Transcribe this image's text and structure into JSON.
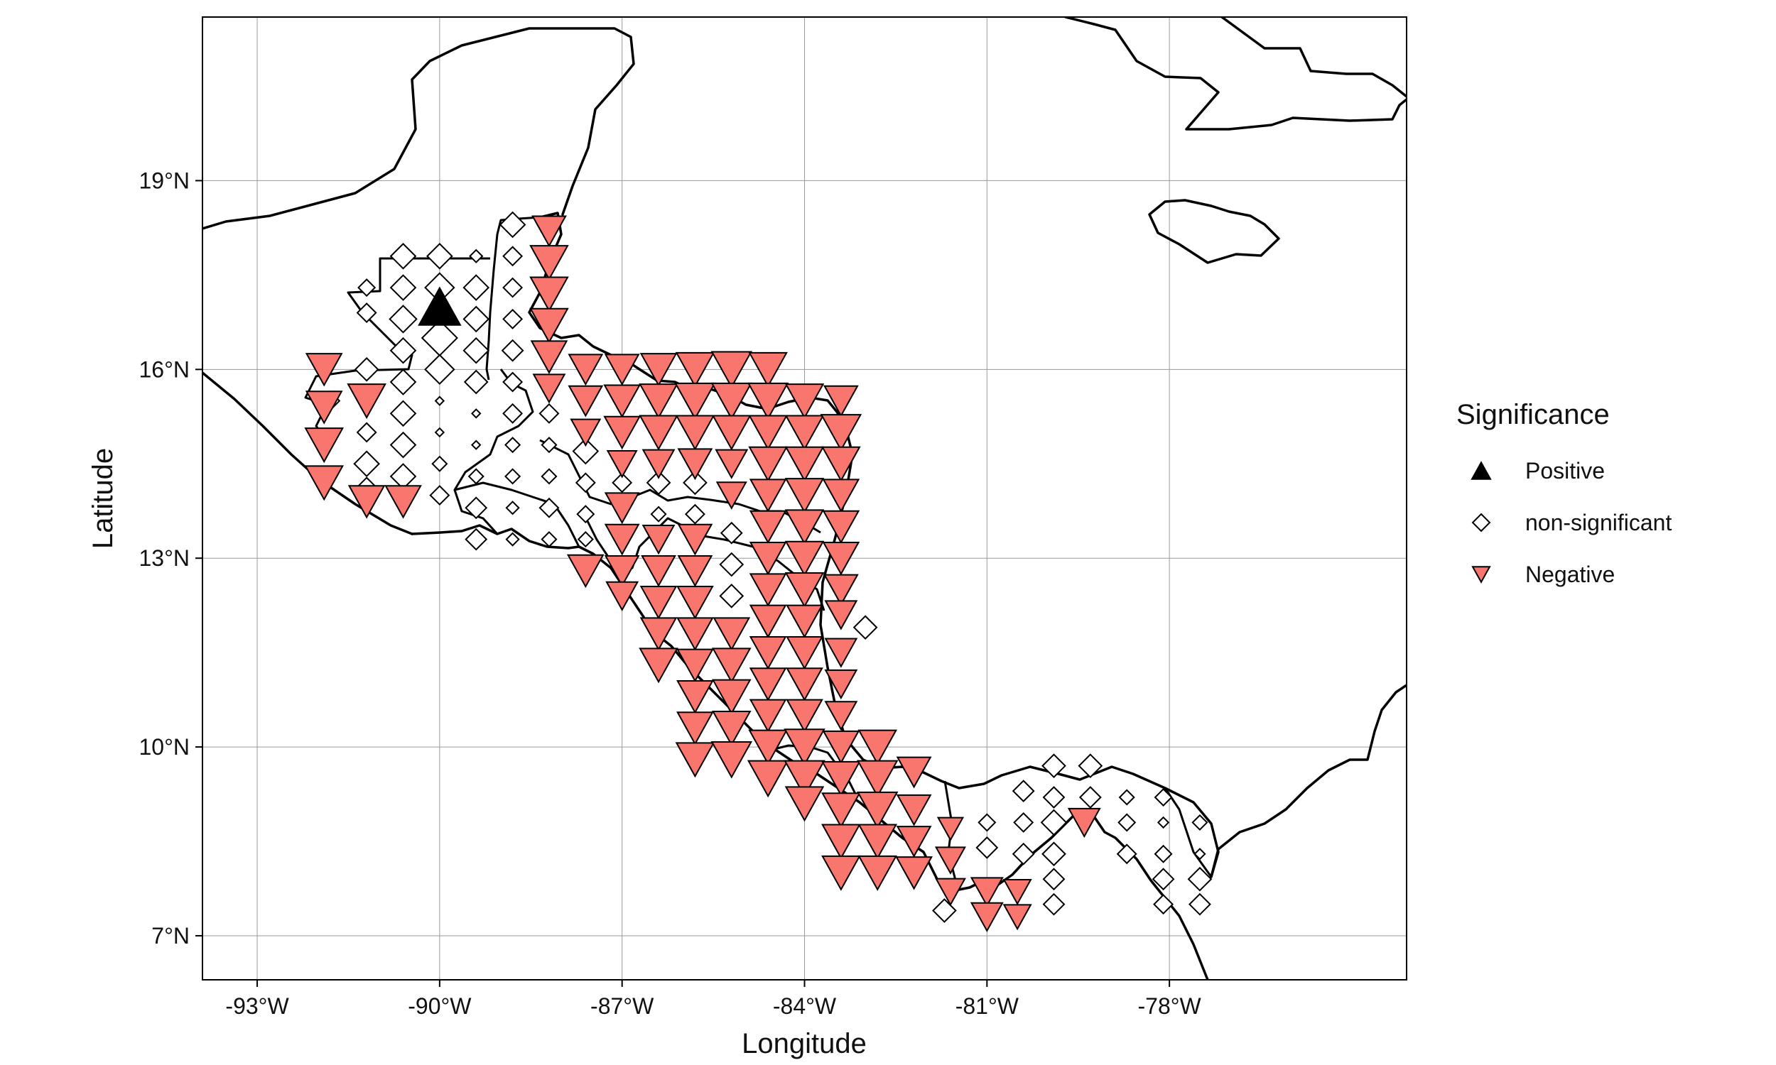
{
  "colors": {
    "negative": "#F8766D",
    "positive": "#000000",
    "nonsig_fill": "#ffffff",
    "stroke": "#000000",
    "grid": "#9a9a9a"
  },
  "chart_data": {
    "type": "scatter",
    "xlabel": "Longitude",
    "ylabel": "Latitude",
    "xlim": [
      -93.9,
      -74.1
    ],
    "ylim": [
      6.3,
      21.6
    ],
    "grid": true,
    "legend_position": "right",
    "x_ticks": [
      -93,
      -90,
      -87,
      -84,
      -81,
      -78
    ],
    "x_tick_labels": [
      "-93°W",
      "-90°W",
      "-87°W",
      "-84°W",
      "-81°W",
      "-78°W"
    ],
    "y_ticks": [
      7,
      10,
      13,
      16,
      19
    ],
    "y_tick_labels": [
      "7°N",
      "10°N",
      "13°N",
      "16°N",
      "19°N"
    ],
    "legend": {
      "title": "Significance",
      "entries": [
        {
          "key": "positive",
          "label": "Positive",
          "shape": "triangle-up"
        },
        {
          "key": "nonsig",
          "label": "non-significant",
          "shape": "diamond"
        },
        {
          "key": "negative",
          "label": "Negative",
          "shape": "triangle-down"
        }
      ]
    },
    "points": {
      "positive": [
        [
          -90.0,
          17.0,
          1.0
        ]
      ],
      "negative": [
        [
          -88.2,
          18.2,
          0.8
        ],
        [
          -88.2,
          17.7,
          0.9
        ],
        [
          -88.2,
          17.2,
          0.9
        ],
        [
          -88.2,
          16.7,
          0.9
        ],
        [
          -88.2,
          16.2,
          0.85
        ],
        [
          -88.2,
          15.7,
          0.75
        ],
        [
          -91.9,
          16.0,
          0.85
        ],
        [
          -91.9,
          15.4,
          0.85
        ],
        [
          -91.9,
          14.8,
          0.9
        ],
        [
          -91.9,
          14.2,
          0.9
        ],
        [
          -91.2,
          15.5,
          0.9
        ],
        [
          -91.2,
          13.9,
          0.85
        ],
        [
          -90.6,
          13.9,
          0.85
        ],
        [
          -87.6,
          16.0,
          0.8
        ],
        [
          -87.6,
          15.5,
          0.8
        ],
        [
          -87.6,
          15.0,
          0.7
        ],
        [
          -87.0,
          16.0,
          0.8
        ],
        [
          -87.0,
          15.5,
          0.85
        ],
        [
          -87.0,
          15.0,
          0.85
        ],
        [
          -87.0,
          14.5,
          0.7
        ],
        [
          -87.0,
          13.8,
          0.8
        ],
        [
          -87.0,
          13.3,
          0.8
        ],
        [
          -87.0,
          12.8,
          0.8
        ],
        [
          -87.0,
          12.4,
          0.75
        ],
        [
          -87.6,
          12.8,
          0.85
        ],
        [
          -86.4,
          16.0,
          0.85
        ],
        [
          -86.4,
          15.5,
          0.9
        ],
        [
          -86.4,
          15.0,
          0.9
        ],
        [
          -86.4,
          14.5,
          0.75
        ],
        [
          -86.4,
          13.3,
          0.75
        ],
        [
          -86.4,
          12.8,
          0.8
        ],
        [
          -86.4,
          12.3,
          0.85
        ],
        [
          -86.4,
          11.8,
          0.85
        ],
        [
          -86.4,
          11.3,
          0.9
        ],
        [
          -85.8,
          16.0,
          0.9
        ],
        [
          -85.8,
          15.5,
          0.95
        ],
        [
          -85.8,
          15.0,
          0.9
        ],
        [
          -85.8,
          14.5,
          0.8
        ],
        [
          -85.8,
          13.3,
          0.8
        ],
        [
          -85.8,
          12.8,
          0.8
        ],
        [
          -85.8,
          12.3,
          0.85
        ],
        [
          -85.8,
          11.8,
          0.85
        ],
        [
          -85.8,
          11.3,
          0.85
        ],
        [
          -85.8,
          10.8,
          0.85
        ],
        [
          -85.8,
          10.3,
          0.85
        ],
        [
          -85.8,
          9.8,
          0.9
        ],
        [
          -85.2,
          16.0,
          0.95
        ],
        [
          -85.2,
          15.5,
          0.95
        ],
        [
          -85.2,
          15.0,
          0.9
        ],
        [
          -85.2,
          14.5,
          0.75
        ],
        [
          -85.2,
          14.0,
          0.7
        ],
        [
          -85.2,
          11.8,
          0.85
        ],
        [
          -85.2,
          11.3,
          0.9
        ],
        [
          -85.2,
          10.8,
          0.9
        ],
        [
          -85.2,
          10.3,
          0.9
        ],
        [
          -85.2,
          9.8,
          0.95
        ],
        [
          -84.6,
          16.0,
          0.9
        ],
        [
          -84.6,
          15.5,
          0.95
        ],
        [
          -84.6,
          15.0,
          0.9
        ],
        [
          -84.6,
          14.5,
          0.9
        ],
        [
          -84.6,
          14.0,
          0.85
        ],
        [
          -84.6,
          13.5,
          0.85
        ],
        [
          -84.6,
          13.0,
          0.85
        ],
        [
          -84.6,
          12.5,
          0.85
        ],
        [
          -84.6,
          12.0,
          0.85
        ],
        [
          -84.6,
          11.5,
          0.85
        ],
        [
          -84.6,
          11.0,
          0.85
        ],
        [
          -84.6,
          10.5,
          0.85
        ],
        [
          -84.6,
          10.0,
          0.9
        ],
        [
          -84.6,
          9.5,
          0.95
        ],
        [
          -84.0,
          15.5,
          0.9
        ],
        [
          -84.0,
          15.0,
          0.9
        ],
        [
          -84.0,
          14.5,
          0.9
        ],
        [
          -84.0,
          14.0,
          0.9
        ],
        [
          -84.0,
          13.5,
          0.9
        ],
        [
          -84.0,
          13.0,
          0.9
        ],
        [
          -84.0,
          12.5,
          0.9
        ],
        [
          -84.0,
          12.0,
          0.85
        ],
        [
          -84.0,
          11.5,
          0.85
        ],
        [
          -84.0,
          11.0,
          0.85
        ],
        [
          -84.0,
          10.5,
          0.85
        ],
        [
          -84.0,
          10.0,
          0.95
        ],
        [
          -84.0,
          9.5,
          0.95
        ],
        [
          -84.0,
          9.1,
          0.9
        ],
        [
          -83.4,
          15.5,
          0.8
        ],
        [
          -83.4,
          15.0,
          0.95
        ],
        [
          -83.4,
          14.5,
          0.9
        ],
        [
          -83.4,
          14.0,
          0.85
        ],
        [
          -83.4,
          13.5,
          0.85
        ],
        [
          -83.4,
          13.0,
          0.85
        ],
        [
          -83.4,
          12.5,
          0.8
        ],
        [
          -83.4,
          12.1,
          0.75
        ],
        [
          -83.4,
          11.5,
          0.75
        ],
        [
          -83.4,
          11.0,
          0.75
        ],
        [
          -83.4,
          10.5,
          0.75
        ],
        [
          -83.4,
          10.0,
          0.85
        ],
        [
          -83.4,
          9.5,
          0.9
        ],
        [
          -83.4,
          9.0,
          0.9
        ],
        [
          -83.4,
          8.5,
          0.9
        ],
        [
          -83.4,
          8.0,
          0.9
        ],
        [
          -82.8,
          10.0,
          0.9
        ],
        [
          -82.8,
          9.5,
          0.95
        ],
        [
          -82.8,
          9.0,
          0.95
        ],
        [
          -82.8,
          8.5,
          0.9
        ],
        [
          -82.8,
          8.0,
          0.9
        ],
        [
          -82.2,
          9.6,
          0.8
        ],
        [
          -82.2,
          9.0,
          0.8
        ],
        [
          -82.2,
          8.5,
          0.8
        ],
        [
          -82.2,
          8.0,
          0.85
        ],
        [
          -81.6,
          8.7,
          0.6
        ],
        [
          -81.6,
          8.2,
          0.7
        ],
        [
          -81.6,
          7.7,
          0.7
        ],
        [
          -81.0,
          7.7,
          0.75
        ],
        [
          -81.0,
          7.3,
          0.75
        ],
        [
          -80.5,
          7.7,
          0.65
        ],
        [
          -80.5,
          7.3,
          0.65
        ],
        [
          -79.4,
          8.8,
          0.75
        ]
      ],
      "nonsig": [
        [
          -88.8,
          18.3,
          0.6
        ],
        [
          -88.8,
          17.8,
          0.45
        ],
        [
          -88.8,
          17.3,
          0.45
        ],
        [
          -88.8,
          16.8,
          0.45
        ],
        [
          -88.8,
          16.3,
          0.5
        ],
        [
          -88.8,
          15.8,
          0.45
        ],
        [
          -88.8,
          15.3,
          0.45
        ],
        [
          -88.8,
          14.8,
          0.35
        ],
        [
          -88.8,
          14.3,
          0.35
        ],
        [
          -88.8,
          13.8,
          0.3
        ],
        [
          -88.8,
          13.3,
          0.3
        ],
        [
          -89.4,
          17.8,
          0.3
        ],
        [
          -89.4,
          17.3,
          0.6
        ],
        [
          -89.4,
          16.8,
          0.6
        ],
        [
          -89.4,
          16.3,
          0.6
        ],
        [
          -89.4,
          15.8,
          0.55
        ],
        [
          -89.4,
          15.3,
          0.2
        ],
        [
          -89.4,
          14.8,
          0.2
        ],
        [
          -89.4,
          14.3,
          0.35
        ],
        [
          -89.4,
          13.8,
          0.5
        ],
        [
          -89.4,
          13.3,
          0.5
        ],
        [
          -90.0,
          17.8,
          0.6
        ],
        [
          -90.0,
          17.3,
          0.7
        ],
        [
          -90.0,
          16.5,
          0.85
        ],
        [
          -90.0,
          16.0,
          0.7
        ],
        [
          -90.0,
          15.5,
          0.2
        ],
        [
          -90.0,
          15.0,
          0.2
        ],
        [
          -90.0,
          14.5,
          0.35
        ],
        [
          -90.0,
          14.0,
          0.45
        ],
        [
          -90.6,
          17.8,
          0.6
        ],
        [
          -90.6,
          17.3,
          0.6
        ],
        [
          -90.6,
          16.8,
          0.65
        ],
        [
          -90.6,
          16.3,
          0.6
        ],
        [
          -90.6,
          15.8,
          0.6
        ],
        [
          -90.6,
          15.3,
          0.6
        ],
        [
          -90.6,
          14.8,
          0.6
        ],
        [
          -90.6,
          14.3,
          0.6
        ],
        [
          -91.2,
          17.3,
          0.4
        ],
        [
          -91.2,
          16.9,
          0.45
        ],
        [
          -91.2,
          16.0,
          0.55
        ],
        [
          -91.2,
          15.0,
          0.45
        ],
        [
          -91.2,
          14.5,
          0.6
        ],
        [
          -91.2,
          14.1,
          0.55
        ],
        [
          -91.8,
          15.5,
          0.45
        ],
        [
          -88.2,
          15.3,
          0.45
        ],
        [
          -88.2,
          14.8,
          0.35
        ],
        [
          -88.2,
          14.3,
          0.35
        ],
        [
          -88.2,
          13.8,
          0.45
        ],
        [
          -88.2,
          13.3,
          0.35
        ],
        [
          -87.6,
          14.7,
          0.6
        ],
        [
          -87.6,
          14.2,
          0.45
        ],
        [
          -87.6,
          13.7,
          0.4
        ],
        [
          -87.6,
          13.3,
          0.35
        ],
        [
          -87.0,
          14.2,
          0.45
        ],
        [
          -86.4,
          14.2,
          0.55
        ],
        [
          -86.4,
          13.7,
          0.35
        ],
        [
          -85.8,
          14.2,
          0.55
        ],
        [
          -85.8,
          13.7,
          0.45
        ],
        [
          -85.2,
          13.4,
          0.5
        ],
        [
          -85.2,
          12.9,
          0.55
        ],
        [
          -85.2,
          12.4,
          0.55
        ],
        [
          -83.0,
          11.9,
          0.55
        ],
        [
          -80.4,
          9.3,
          0.5
        ],
        [
          -80.4,
          8.8,
          0.45
        ],
        [
          -80.4,
          8.3,
          0.5
        ],
        [
          -81.0,
          8.8,
          0.4
        ],
        [
          -81.0,
          8.4,
          0.5
        ],
        [
          -81.7,
          7.4,
          0.55
        ],
        [
          -79.9,
          9.7,
          0.55
        ],
        [
          -79.9,
          9.2,
          0.5
        ],
        [
          -79.9,
          8.8,
          0.6
        ],
        [
          -79.9,
          8.3,
          0.55
        ],
        [
          -79.9,
          7.9,
          0.5
        ],
        [
          -79.9,
          7.5,
          0.5
        ],
        [
          -79.3,
          9.7,
          0.55
        ],
        [
          -79.3,
          9.2,
          0.5
        ],
        [
          -78.7,
          9.2,
          0.35
        ],
        [
          -78.7,
          8.8,
          0.4
        ],
        [
          -78.7,
          8.3,
          0.45
        ],
        [
          -78.1,
          9.2,
          0.4
        ],
        [
          -78.1,
          8.8,
          0.25
        ],
        [
          -78.1,
          8.3,
          0.4
        ],
        [
          -78.1,
          7.9,
          0.5
        ],
        [
          -78.1,
          7.5,
          0.45
        ],
        [
          -77.5,
          8.8,
          0.35
        ],
        [
          -77.5,
          8.3,
          0.25
        ],
        [
          -77.5,
          7.9,
          0.55
        ],
        [
          -77.5,
          7.5,
          0.5
        ]
      ]
    }
  }
}
